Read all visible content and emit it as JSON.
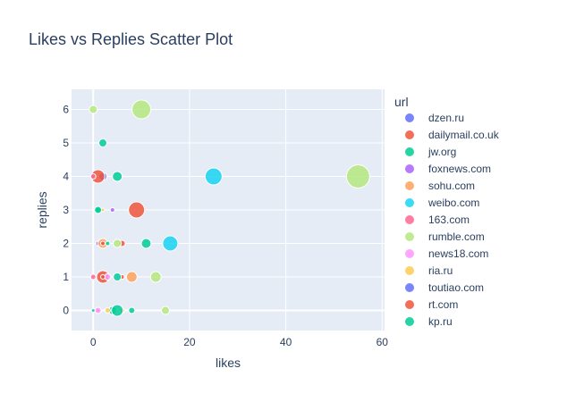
{
  "chart_data": {
    "type": "scatter",
    "title": "Likes vs Replies Scatter Plot",
    "xlabel": "likes",
    "ylabel": "replies",
    "xlim": [
      -4.5,
      60.5
    ],
    "ylim": [
      -0.6,
      6.6
    ],
    "xticks": [
      0,
      20,
      40,
      60
    ],
    "yticks": [
      0,
      1,
      2,
      3,
      4,
      5,
      6
    ],
    "legend_title": "url",
    "legend_position": "right",
    "series": [
      {
        "name": "dzen.ru",
        "color": "#636efa",
        "points": [
          {
            "x": 2,
            "y": 4,
            "size": 9
          }
        ]
      },
      {
        "name": "dailymail.co.uk",
        "color": "#EF553B",
        "points": [
          {
            "x": 1,
            "y": 4,
            "size": 15
          },
          {
            "x": 9,
            "y": 3,
            "size": 18
          },
          {
            "x": 2,
            "y": 1,
            "size": 14
          },
          {
            "x": 6,
            "y": 2,
            "size": 7
          },
          {
            "x": 1,
            "y": 0,
            "size": 4
          },
          {
            "x": 6,
            "y": 1,
            "size": 5
          }
        ]
      },
      {
        "name": "jw.org",
        "color": "#00cc96",
        "points": [
          {
            "x": 2,
            "y": 5,
            "size": 9
          },
          {
            "x": 5,
            "y": 4,
            "size": 11
          },
          {
            "x": 1,
            "y": 3,
            "size": 6
          },
          {
            "x": 11,
            "y": 2,
            "size": 11
          },
          {
            "x": 5,
            "y": 1,
            "size": 9
          },
          {
            "x": 4,
            "y": 0,
            "size": 9
          },
          {
            "x": 8,
            "y": 0,
            "size": 7
          }
        ]
      },
      {
        "name": "foxnews.com",
        "color": "#ab63fa",
        "points": [
          {
            "x": 4,
            "y": 3,
            "size": 5
          },
          {
            "x": 1,
            "y": 2,
            "size": 5
          }
        ]
      },
      {
        "name": "sohu.com",
        "color": "#FFA15A",
        "points": [
          {
            "x": 8,
            "y": 1,
            "size": 12
          },
          {
            "x": 2,
            "y": 2,
            "size": 11
          }
        ]
      },
      {
        "name": "weibo.com",
        "color": "#19d3f3",
        "points": [
          {
            "x": 25,
            "y": 4,
            "size": 19
          },
          {
            "x": 16,
            "y": 2,
            "size": 17
          }
        ]
      },
      {
        "name": "163.com",
        "color": "#FF6692",
        "points": [
          {
            "x": 0,
            "y": 4,
            "size": 6
          },
          {
            "x": 0,
            "y": 1,
            "size": 6
          }
        ]
      },
      {
        "name": "rumble.com",
        "color": "#B6E880",
        "points": [
          {
            "x": 55,
            "y": 4,
            "size": 26
          },
          {
            "x": 10,
            "y": 6,
            "size": 21
          },
          {
            "x": 0,
            "y": 6,
            "size": 9
          },
          {
            "x": 13,
            "y": 1,
            "size": 12
          },
          {
            "x": 15,
            "y": 0,
            "size": 9
          },
          {
            "x": 5,
            "y": 2,
            "size": 9
          }
        ]
      },
      {
        "name": "news18.com",
        "color": "#FF97FF",
        "points": [
          {
            "x": 1,
            "y": 0,
            "size": 7
          },
          {
            "x": 3,
            "y": 1,
            "size": 7
          }
        ]
      },
      {
        "name": "ria.ru",
        "color": "#FECB52",
        "points": [
          {
            "x": 3,
            "y": 0,
            "size": 6
          },
          {
            "x": 6,
            "y": 0,
            "size": 6
          },
          {
            "x": 2,
            "y": 3,
            "size": 4
          }
        ]
      },
      {
        "name": "toutiao.com",
        "color": "#636efa",
        "points": [
          {
            "x": 2,
            "y": 1,
            "size": 4
          }
        ]
      },
      {
        "name": "rt.com",
        "color": "#EF553B",
        "points": [
          {
            "x": 2,
            "y": 1,
            "size": 5
          },
          {
            "x": 2,
            "y": 2,
            "size": 5
          }
        ]
      },
      {
        "name": "kp.ru",
        "color": "#00cc96",
        "points": [
          {
            "x": 5,
            "y": 0,
            "size": 13
          },
          {
            "x": 0,
            "y": 0,
            "size": 4
          },
          {
            "x": 1,
            "y": 3,
            "size": 8
          },
          {
            "x": 3,
            "y": 2,
            "size": 5
          }
        ]
      }
    ]
  }
}
